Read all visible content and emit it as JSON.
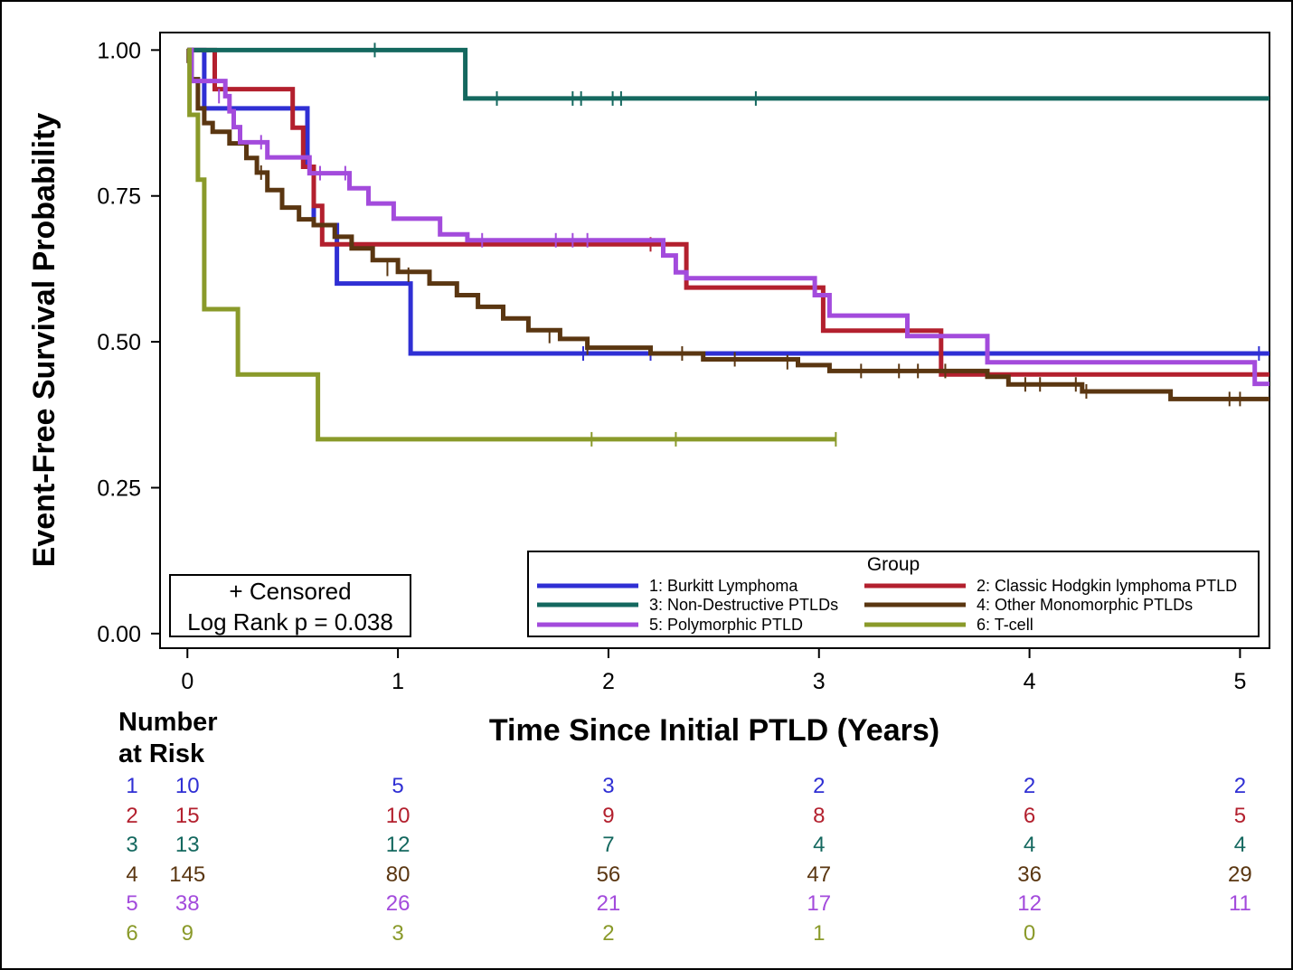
{
  "chart_data": {
    "type": "line",
    "subtype": "kaplan-meier step",
    "xlabel": "Time Since Initial PTLD (Years)",
    "ylabel": "Event-Free Survival Probability",
    "xlim": [
      -0.13,
      5.14
    ],
    "ylim": [
      -0.025,
      1.03
    ],
    "x_ticks": [
      "0",
      "1",
      "2",
      "3",
      "4",
      "5"
    ],
    "y_ticks": [
      "0.00",
      "0.25",
      "0.50",
      "0.75",
      "1.00"
    ],
    "grid": false,
    "legend": {
      "title": "Group",
      "placement": "bottom-right inside plot"
    },
    "note": {
      "line1": "+ Censored",
      "line2": "Log Rank p =  0.038"
    },
    "series": [
      {
        "id": "1",
        "name": "1: Burkitt Lymphoma",
        "color": "#2f2fd4",
        "steps": [
          [
            0,
            1.0
          ],
          [
            0.08,
            0.9
          ],
          [
            0.57,
            0.8
          ],
          [
            0.6,
            0.7
          ],
          [
            0.71,
            0.6
          ],
          [
            1.06,
            0.48
          ],
          [
            5.14,
            0.48
          ]
        ],
        "censored": [
          [
            1.88,
            0.48
          ],
          [
            2.2,
            0.48
          ],
          [
            5.09,
            0.48
          ]
        ]
      },
      {
        "id": "2",
        "name": "2: Classic Hodgkin lymphoma PTLD",
        "color": "#b3202e",
        "steps": [
          [
            0,
            1.0
          ],
          [
            0.13,
            0.933
          ],
          [
            0.5,
            0.867
          ],
          [
            0.55,
            0.8
          ],
          [
            0.6,
            0.733
          ],
          [
            0.64,
            0.667
          ],
          [
            2.37,
            0.593
          ],
          [
            3.02,
            0.519
          ],
          [
            3.58,
            0.444
          ],
          [
            5.14,
            0.444
          ]
        ],
        "censored": [
          [
            2.2,
            0.667
          ]
        ]
      },
      {
        "id": "3",
        "name": "3: Non-Destructive PTLDs",
        "color": "#14685f",
        "steps": [
          [
            0,
            1.0
          ],
          [
            1.32,
            0.917
          ],
          [
            5.14,
            0.917
          ]
        ],
        "censored": [
          [
            0.89,
            1.0
          ],
          [
            1.47,
            0.917
          ],
          [
            1.83,
            0.917
          ],
          [
            1.87,
            0.917
          ],
          [
            2.02,
            0.917
          ],
          [
            2.06,
            0.917
          ],
          [
            2.7,
            0.917
          ]
        ]
      },
      {
        "id": "4",
        "name": "4: Other Monomorphic PTLDs",
        "color": "#5a3611",
        "steps": [
          [
            0,
            1.0
          ],
          [
            0.02,
            0.95
          ],
          [
            0.05,
            0.9
          ],
          [
            0.08,
            0.875
          ],
          [
            0.12,
            0.86
          ],
          [
            0.2,
            0.84
          ],
          [
            0.28,
            0.815
          ],
          [
            0.33,
            0.79
          ],
          [
            0.38,
            0.76
          ],
          [
            0.45,
            0.73
          ],
          [
            0.53,
            0.71
          ],
          [
            0.6,
            0.7
          ],
          [
            0.7,
            0.68
          ],
          [
            0.78,
            0.66
          ],
          [
            0.88,
            0.64
          ],
          [
            1.0,
            0.62
          ],
          [
            1.15,
            0.6
          ],
          [
            1.28,
            0.58
          ],
          [
            1.38,
            0.56
          ],
          [
            1.5,
            0.54
          ],
          [
            1.62,
            0.52
          ],
          [
            1.77,
            0.505
          ],
          [
            1.9,
            0.49
          ],
          [
            2.2,
            0.48
          ],
          [
            2.45,
            0.47
          ],
          [
            2.9,
            0.46
          ],
          [
            3.05,
            0.45
          ],
          [
            3.8,
            0.44
          ],
          [
            3.9,
            0.427
          ],
          [
            4.25,
            0.415
          ],
          [
            4.67,
            0.402
          ],
          [
            5.14,
            0.402
          ]
        ],
        "censored": [
          [
            0.0,
            0.99
          ],
          [
            0.35,
            0.79
          ],
          [
            0.95,
            0.625
          ],
          [
            1.05,
            0.615
          ],
          [
            1.72,
            0.51
          ],
          [
            1.9,
            0.49
          ],
          [
            2.35,
            0.48
          ],
          [
            2.6,
            0.47
          ],
          [
            2.85,
            0.465
          ],
          [
            3.2,
            0.45
          ],
          [
            3.38,
            0.45
          ],
          [
            3.47,
            0.45
          ],
          [
            3.6,
            0.45
          ],
          [
            3.98,
            0.427
          ],
          [
            4.05,
            0.427
          ],
          [
            4.22,
            0.427
          ],
          [
            4.27,
            0.415
          ],
          [
            4.95,
            0.402
          ],
          [
            5.0,
            0.402
          ]
        ]
      },
      {
        "id": "5",
        "name": "5: Polymorphic PTLD",
        "color": "#a34bdc",
        "steps": [
          [
            0,
            1.0
          ],
          [
            0.02,
            0.947
          ],
          [
            0.18,
            0.921
          ],
          [
            0.2,
            0.895
          ],
          [
            0.22,
            0.868
          ],
          [
            0.25,
            0.842
          ],
          [
            0.38,
            0.816
          ],
          [
            0.58,
            0.789
          ],
          [
            0.77,
            0.763
          ],
          [
            0.86,
            0.737
          ],
          [
            0.98,
            0.711
          ],
          [
            1.2,
            0.684
          ],
          [
            1.33,
            0.674
          ],
          [
            2.26,
            0.648
          ],
          [
            2.32,
            0.619
          ],
          [
            2.37,
            0.609
          ],
          [
            2.98,
            0.58
          ],
          [
            3.05,
            0.545
          ],
          [
            3.42,
            0.51
          ],
          [
            3.8,
            0.465
          ],
          [
            5.07,
            0.428
          ],
          [
            5.14,
            0.428
          ]
        ],
        "censored": [
          [
            0.15,
            0.921
          ],
          [
            0.35,
            0.842
          ],
          [
            0.63,
            0.789
          ],
          [
            0.75,
            0.789
          ],
          [
            1.4,
            0.674
          ],
          [
            1.75,
            0.674
          ],
          [
            1.83,
            0.674
          ],
          [
            1.9,
            0.674
          ]
        ]
      },
      {
        "id": "6",
        "name": "6: T-cell",
        "color": "#8a9a2a",
        "steps": [
          [
            0,
            1.0
          ],
          [
            0.01,
            0.889
          ],
          [
            0.05,
            0.778
          ],
          [
            0.08,
            0.556
          ],
          [
            0.24,
            0.444
          ],
          [
            0.62,
            0.333
          ],
          [
            3.08,
            0.333
          ]
        ],
        "censored": [
          [
            1.92,
            0.333
          ],
          [
            2.32,
            0.333
          ],
          [
            3.08,
            0.333
          ]
        ]
      }
    ]
  },
  "risk_table": {
    "header_line1": "Number",
    "header_line2": "at Risk",
    "times": [
      0,
      1,
      2,
      3,
      4,
      5
    ],
    "rows": [
      {
        "group": "1",
        "color": "#2f2fd4",
        "counts": [
          "10",
          "5",
          "3",
          "2",
          "2",
          "2"
        ]
      },
      {
        "group": "2",
        "color": "#b3202e",
        "counts": [
          "15",
          "10",
          "9",
          "8",
          "6",
          "5"
        ]
      },
      {
        "group": "3",
        "color": "#14685f",
        "counts": [
          "13",
          "12",
          "7",
          "4",
          "4",
          "4"
        ]
      },
      {
        "group": "4",
        "color": "#5a3611",
        "counts": [
          "145",
          "80",
          "56",
          "47",
          "36",
          "29"
        ]
      },
      {
        "group": "5",
        "color": "#a34bdc",
        "counts": [
          "38",
          "26",
          "21",
          "17",
          "12",
          "11"
        ]
      },
      {
        "group": "6",
        "color": "#8a9a2a",
        "counts": [
          "9",
          "3",
          "2",
          "1",
          "0",
          ""
        ]
      }
    ]
  }
}
